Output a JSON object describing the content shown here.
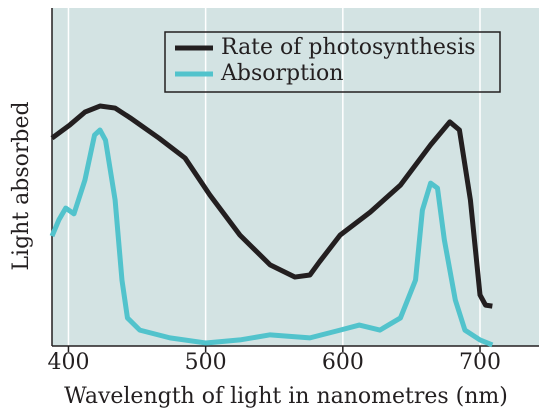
{
  "chart_data": {
    "type": "line",
    "xlabel": "Wavelength of light in nanometres (nm)",
    "ylabel": "Light absorbed",
    "xlim": [
      388,
      743
    ],
    "xticks": [
      400,
      500,
      600,
      700
    ],
    "ylim": [
      0,
      100
    ],
    "grid": true,
    "legend": "upper right",
    "series": [
      {
        "name": "Rate of photosynthesis",
        "color": "#231f20",
        "x": [
          388,
          401,
          412,
          423,
          434,
          445,
          466,
          485,
          503,
          525,
          547,
          565,
          576,
          583,
          598,
          620,
          642,
          664,
          678,
          685,
          693,
          700,
          704,
          709
        ],
        "values": [
          61.5,
          65.4,
          69.2,
          71.0,
          70.4,
          67.5,
          61.5,
          55.6,
          44.7,
          32.8,
          24.0,
          20.4,
          21.0,
          24.9,
          32.8,
          39.6,
          47.6,
          59.5,
          66.3,
          63.9,
          43.2,
          15.1,
          12.1,
          11.8
        ]
      },
      {
        "name": "Absorption",
        "color": "#52c3cc",
        "x": [
          388,
          393,
          398,
          404,
          412,
          419,
          423,
          427,
          434,
          439,
          443,
          452,
          474,
          500,
          525,
          547,
          576,
          598,
          612,
          627,
          642,
          653,
          658,
          664,
          669,
          674,
          682,
          689,
          700,
          709
        ],
        "values": [
          32.5,
          37.3,
          40.8,
          39.1,
          49.1,
          62.4,
          63.9,
          60.9,
          43.2,
          19.5,
          8.3,
          4.7,
          2.4,
          0.9,
          1.8,
          3.3,
          2.4,
          4.7,
          6.2,
          4.7,
          8.3,
          19.5,
          40.2,
          48.2,
          46.7,
          31.4,
          13.6,
          4.7,
          1.8,
          0.3
        ]
      }
    ]
  }
}
